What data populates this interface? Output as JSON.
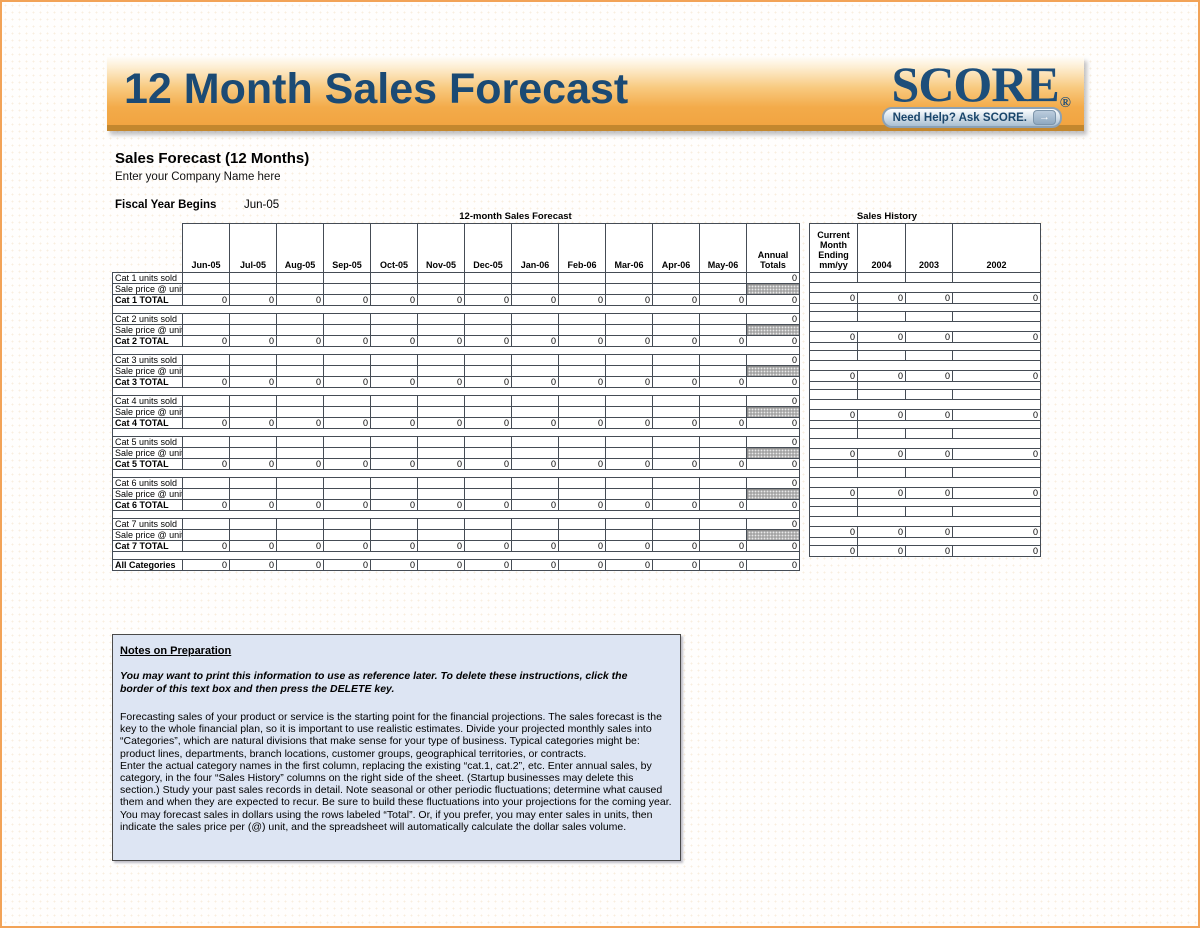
{
  "banner": {
    "title": "12 Month Sales Forecast",
    "logo_text": "SCORE",
    "logo_registered": "®",
    "help_button_label": "Need Help? Ask SCORE.",
    "help_button_arrow": "→",
    "colors": {
      "banner_orange": "#F1A23E",
      "title_navy": "#1B4A74",
      "bottom_strip": "#C3872E"
    }
  },
  "sheet": {
    "title": "Sales Forecast (12 Months)",
    "company_name": "Enter your Company Name here",
    "fiscal_year_label": "Fiscal Year Begins",
    "fiscal_year_value": "Jun-05"
  },
  "forecast": {
    "title": "12-month Sales Forecast",
    "months": [
      "Jun-05",
      "Jul-05",
      "Aug-05",
      "Sep-05",
      "Oct-05",
      "Nov-05",
      "Dec-05",
      "Jan-06",
      "Feb-06",
      "Mar-06",
      "Apr-06",
      "May-06"
    ],
    "annual_totals_label": "Annual Totals",
    "all_categories_label": "All Categories",
    "categories": [
      {
        "name": "Cat 1",
        "units_label": "Cat 1 units sold",
        "price_label": "Sale price @ unit",
        "total_label": "Cat 1 TOTAL",
        "monthly_totals": [
          "0",
          "0",
          "0",
          "0",
          "0",
          "0",
          "0",
          "0",
          "0",
          "0",
          "0",
          "0"
        ],
        "annual_units": "0",
        "annual_total": "0",
        "history_totals": [
          "0",
          "0",
          "0",
          "0"
        ]
      },
      {
        "name": "Cat 2",
        "units_label": "Cat 2 units sold",
        "price_label": "Sale price @ unit",
        "total_label": "Cat 2 TOTAL",
        "monthly_totals": [
          "0",
          "0",
          "0",
          "0",
          "0",
          "0",
          "0",
          "0",
          "0",
          "0",
          "0",
          "0"
        ],
        "annual_units": "0",
        "annual_total": "0",
        "history_totals": [
          "0",
          "0",
          "0",
          "0"
        ]
      },
      {
        "name": "Cat 3",
        "units_label": "Cat 3 units sold",
        "price_label": "Sale price @ unit",
        "total_label": "Cat 3 TOTAL",
        "monthly_totals": [
          "0",
          "0",
          "0",
          "0",
          "0",
          "0",
          "0",
          "0",
          "0",
          "0",
          "0",
          "0"
        ],
        "annual_units": "0",
        "annual_total": "0",
        "history_totals": [
          "0",
          "0",
          "0",
          "0"
        ]
      },
      {
        "name": "Cat 4",
        "units_label": "Cat 4 units sold",
        "price_label": "Sale price @ unit",
        "total_label": "Cat 4 TOTAL",
        "monthly_totals": [
          "0",
          "0",
          "0",
          "0",
          "0",
          "0",
          "0",
          "0",
          "0",
          "0",
          "0",
          "0"
        ],
        "annual_units": "0",
        "annual_total": "0",
        "history_totals": [
          "0",
          "0",
          "0",
          "0"
        ]
      },
      {
        "name": "Cat 5",
        "units_label": "Cat 5 units sold",
        "price_label": "Sale price @ unit",
        "total_label": "Cat 5 TOTAL",
        "monthly_totals": [
          "0",
          "0",
          "0",
          "0",
          "0",
          "0",
          "0",
          "0",
          "0",
          "0",
          "0",
          "0"
        ],
        "annual_units": "0",
        "annual_total": "0",
        "history_totals": [
          "0",
          "0",
          "0",
          "0"
        ]
      },
      {
        "name": "Cat 6",
        "units_label": "Cat 6 units sold",
        "price_label": "Sale price @ unit",
        "total_label": "Cat 6 TOTAL",
        "monthly_totals": [
          "0",
          "0",
          "0",
          "0",
          "0",
          "0",
          "0",
          "0",
          "0",
          "0",
          "0",
          "0"
        ],
        "annual_units": "0",
        "annual_total": "0",
        "history_totals": [
          "0",
          "0",
          "0",
          "0"
        ]
      },
      {
        "name": "Cat 7",
        "units_label": "Cat 7 units sold",
        "price_label": "Sale price @ unit",
        "total_label": "Cat 7 TOTAL",
        "monthly_totals": [
          "0",
          "0",
          "0",
          "0",
          "0",
          "0",
          "0",
          "0",
          "0",
          "0",
          "0",
          "0"
        ],
        "annual_units": "0",
        "annual_total": "0",
        "history_totals": [
          "0",
          "0",
          "0",
          "0"
        ]
      }
    ],
    "all_categories": {
      "monthly_totals": [
        "0",
        "0",
        "0",
        "0",
        "0",
        "0",
        "0",
        "0",
        "0",
        "0",
        "0",
        "0"
      ],
      "annual_total": "0",
      "history_totals": [
        "0",
        "0",
        "0",
        "0"
      ]
    }
  },
  "history": {
    "title": "Sales History",
    "columns": [
      "Current Month Ending mm/yy",
      "2004",
      "2003",
      "2002"
    ]
  },
  "notes": {
    "heading": "Notes on Preparation",
    "warning": "You may want to print this information to use as reference later. To delete these instructions, click the border of this text box and then press the DELETE key.",
    "para1": "Forecasting sales of your product or service is the starting point for the financial projections. The sales forecast is the key to the whole financial plan, so it is important to use realistic estimates. Divide your projected monthly sales into “Categories”, which are natural divisions that make sense for your type of business. Typical categories might be: product lines, departments, branch locations, customer groups, geographical territories, or contracts.",
    "para2": "Enter the actual category names in the first column, replacing the existing “cat.1, cat.2”, etc. Enter annual sales, by category, in the four “Sales History” columns on the right side of the sheet. (Startup businesses may delete this section.) Study your past sales records in detail. Note seasonal or other periodic fluctuations; determine what caused them and when they are expected to recur. Be sure to build these fluctuations into your projections for the coming year. You may forecast sales in dollars using the rows labeled “Total”.  Or, if you prefer, you may enter sales in units, then indicate the sales price per (@) unit, and the spreadsheet will automatically calculate the dollar sales volume."
  }
}
